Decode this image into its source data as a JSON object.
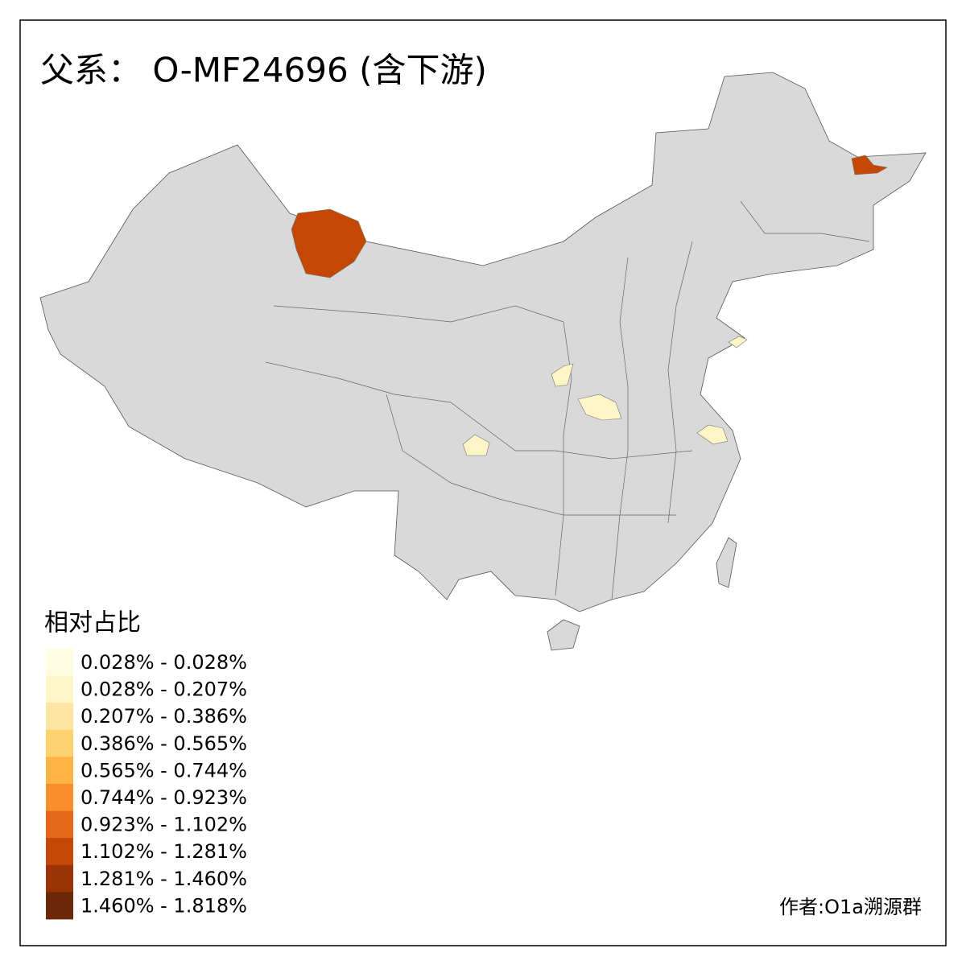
{
  "title": "父系： O-MF24696 (含下游)",
  "legend": {
    "title": "相对占比",
    "items": [
      {
        "label": "0.028% - 0.028%",
        "color": "#fffee2"
      },
      {
        "label": "0.028% - 0.207%",
        "color": "#fff5c6"
      },
      {
        "label": "0.207% - 0.386%",
        "color": "#fee6a2"
      },
      {
        "label": "0.386% - 0.565%",
        "color": "#fed26e"
      },
      {
        "label": "0.565% - 0.744%",
        "color": "#fdb443"
      },
      {
        "label": "0.744% - 0.923%",
        "color": "#f98f2b"
      },
      {
        "label": "0.923% - 1.102%",
        "color": "#e6661a"
      },
      {
        "label": "1.102% - 1.281%",
        "color": "#c44704"
      },
      {
        "label": "1.281% - 1.460%",
        "color": "#9b3404"
      },
      {
        "label": "1.460% - 1.818%",
        "color": "#6b2708"
      }
    ]
  },
  "author": "作者:O1a溯源群"
}
